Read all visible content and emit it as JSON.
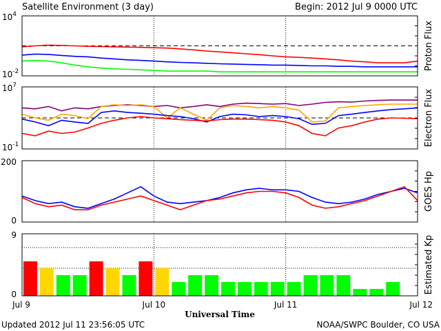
{
  "header": {
    "title": "Satellite Environment (3 day)",
    "begin": "Begin:  2012 Jul 9 0000 UTC"
  },
  "footer": {
    "updated": "Updated 2012 Jul 11 23:56:05 UTC",
    "credit": "NOAA/SWPC Boulder, CO USA"
  },
  "x_axis": {
    "label": "Universal Time",
    "ticks": [
      "Jul 9",
      "Jul 10",
      "Jul 11",
      "Jul 12"
    ],
    "range_days": [
      0,
      3
    ]
  },
  "colors": {
    "red": "#ff0000",
    "blue": "#0000ff",
    "green": "#00ff00",
    "orange": "#ffa500",
    "purple": "#800080",
    "kp_yellow": "#ffd700"
  },
  "chart_data": [
    {
      "type": "line",
      "ylabel": "Proton Flux",
      "yscale": "log",
      "ylim": [
        0.01,
        10000
      ],
      "yticks": [
        {
          "base": "10",
          "exp": "4"
        },
        {
          "base": "10",
          "exp": "-2"
        }
      ],
      "threshold": 10,
      "x": [
        0,
        0.1,
        0.2,
        0.3,
        0.4,
        0.5,
        0.6,
        0.7,
        0.8,
        0.9,
        1.0,
        1.1,
        1.2,
        1.3,
        1.4,
        1.5,
        1.6,
        1.7,
        1.8,
        1.9,
        2.0,
        2.1,
        2.2,
        2.3,
        2.4,
        2.5,
        2.6,
        2.7,
        2.8,
        2.9,
        3.0
      ],
      "series": [
        {
          "color": "#ff0000",
          "values": [
            8,
            10,
            12,
            11,
            10,
            9,
            8.5,
            8,
            7.5,
            7,
            6.5,
            6,
            5,
            4,
            3,
            2.5,
            2,
            1.6,
            1.3,
            1.0,
            0.8,
            0.7,
            0.6,
            0.5,
            0.4,
            0.3,
            0.25,
            0.2,
            0.2,
            0.2,
            0.3
          ]
        },
        {
          "color": "#0000ff",
          "values": [
            1.2,
            1.5,
            1.4,
            1.1,
            0.9,
            0.8,
            0.6,
            0.5,
            0.4,
            0.35,
            0.3,
            0.25,
            0.22,
            0.2,
            0.18,
            0.16,
            0.15,
            0.14,
            0.13,
            0.12,
            0.12,
            0.11,
            0.1,
            0.1,
            0.09,
            0.09,
            0.08,
            0.08,
            0.08,
            0.08,
            0.08
          ]
        },
        {
          "color": "#00ff00",
          "values": [
            0.3,
            0.35,
            0.3,
            0.2,
            0.12,
            0.08,
            0.06,
            0.05,
            0.045,
            0.04,
            0.035,
            0.03,
            0.03,
            0.03,
            0.03,
            0.025,
            0.025,
            0.025,
            0.025,
            0.025,
            0.025,
            0.025,
            0.025,
            0.025,
            0.025,
            0.025,
            0.025,
            0.025,
            0.025,
            0.025,
            0.025
          ]
        }
      ]
    },
    {
      "type": "line",
      "ylabel": "Electron Flux",
      "yscale": "log",
      "ylim": [
        0.1,
        10000000
      ],
      "yticks": [
        {
          "base": "10",
          "exp": "7"
        },
        {
          "base": "10",
          "exp": "-1"
        }
      ],
      "threshold": 1000,
      "x": [
        0,
        0.1,
        0.2,
        0.3,
        0.4,
        0.5,
        0.6,
        0.7,
        0.8,
        0.9,
        1.0,
        1.1,
        1.2,
        1.3,
        1.4,
        1.5,
        1.6,
        1.7,
        1.8,
        1.9,
        2.0,
        2.1,
        2.2,
        2.3,
        2.4,
        2.5,
        2.6,
        2.7,
        2.8,
        2.9,
        3.0
      ],
      "series": [
        {
          "color": "#800080",
          "values": [
            20000,
            15000,
            30000,
            8000,
            20000,
            15000,
            30000,
            40000,
            50000,
            40000,
            30000,
            40000,
            20000,
            30000,
            50000,
            30000,
            60000,
            80000,
            70000,
            60000,
            70000,
            40000,
            60000,
            100000,
            120000,
            110000,
            150000,
            180000,
            200000,
            200000,
            200000
          ]
        },
        {
          "color": "#ffa500",
          "values": [
            3000,
            1000,
            500,
            3000,
            2000,
            800,
            30000,
            50000,
            40000,
            50000,
            30000,
            1000,
            20000,
            3000,
            500,
            20000,
            40000,
            30000,
            20000,
            30000,
            20000,
            10000,
            300,
            400,
            20000,
            30000,
            40000,
            50000,
            60000,
            60000,
            60000
          ]
        },
        {
          "color": "#0000ff",
          "values": [
            700,
            300,
            100,
            500,
            300,
            200,
            5000,
            8000,
            5000,
            4000,
            3000,
            2000,
            1500,
            800,
            300,
            1500,
            3000,
            2500,
            1500,
            2000,
            1500,
            800,
            150,
            200,
            2000,
            3000,
            5000,
            8000,
            12000,
            15000,
            20000
          ]
        },
        {
          "color": "#ff0000",
          "values": [
            10,
            5,
            20,
            10,
            15,
            50,
            200,
            500,
            1000,
            1500,
            1000,
            800,
            600,
            500,
            400,
            600,
            700,
            700,
            600,
            500,
            300,
            100,
            10,
            5,
            50,
            100,
            300,
            700,
            1000,
            900,
            800
          ]
        }
      ]
    },
    {
      "type": "line",
      "ylabel": "GOES Hp",
      "yscale": "linear",
      "ylim": [
        0,
        200
      ],
      "yticks": [
        200,
        0
      ],
      "x": [
        0,
        0.1,
        0.2,
        0.3,
        0.4,
        0.5,
        0.6,
        0.7,
        0.8,
        0.9,
        1.0,
        1.1,
        1.2,
        1.3,
        1.4,
        1.5,
        1.6,
        1.7,
        1.8,
        1.9,
        2.0,
        2.1,
        2.2,
        2.3,
        2.4,
        2.5,
        2.6,
        2.7,
        2.8,
        2.9,
        3.0
      ],
      "series": [
        {
          "color": "#0000ff",
          "values": [
            85,
            70,
            60,
            65,
            50,
            45,
            60,
            75,
            95,
            115,
            85,
            65,
            60,
            65,
            70,
            80,
            95,
            105,
            110,
            105,
            105,
            100,
            80,
            65,
            60,
            65,
            75,
            90,
            100,
            110,
            95
          ]
        },
        {
          "color": "#ff0000",
          "values": [
            80,
            60,
            50,
            55,
            40,
            40,
            55,
            65,
            75,
            85,
            70,
            55,
            40,
            55,
            70,
            75,
            85,
            95,
            100,
            100,
            95,
            80,
            55,
            45,
            50,
            60,
            70,
            85,
            100,
            115,
            70
          ]
        }
      ]
    },
    {
      "type": "bar",
      "ylabel": "Estimated Kp",
      "ylim": [
        0,
        9
      ],
      "yticks": [
        9,
        0
      ],
      "gridlines": [
        4,
        7
      ],
      "bar_width_days": 0.125,
      "bars": [
        {
          "x": 0.0625,
          "value": 5,
          "color": "#ff0000"
        },
        {
          "x": 0.1875,
          "value": 4,
          "color": "#ffd700"
        },
        {
          "x": 0.3125,
          "value": 3,
          "color": "#00ff00"
        },
        {
          "x": 0.4375,
          "value": 3,
          "color": "#00ff00"
        },
        {
          "x": 0.5625,
          "value": 5,
          "color": "#ff0000"
        },
        {
          "x": 0.6875,
          "value": 4,
          "color": "#ffd700"
        },
        {
          "x": 0.8125,
          "value": 3,
          "color": "#00ff00"
        },
        {
          "x": 0.9375,
          "value": 5,
          "color": "#ff0000"
        },
        {
          "x": 1.0625,
          "value": 4,
          "color": "#ffd700"
        },
        {
          "x": 1.1875,
          "value": 2,
          "color": "#00ff00"
        },
        {
          "x": 1.3125,
          "value": 3,
          "color": "#00ff00"
        },
        {
          "x": 1.4375,
          "value": 3,
          "color": "#00ff00"
        },
        {
          "x": 1.5625,
          "value": 2,
          "color": "#00ff00"
        },
        {
          "x": 1.6875,
          "value": 2,
          "color": "#00ff00"
        },
        {
          "x": 1.8125,
          "value": 2,
          "color": "#00ff00"
        },
        {
          "x": 1.9375,
          "value": 2,
          "color": "#00ff00"
        },
        {
          "x": 2.0625,
          "value": 2,
          "color": "#00ff00"
        },
        {
          "x": 2.1875,
          "value": 3,
          "color": "#00ff00"
        },
        {
          "x": 2.3125,
          "value": 3,
          "color": "#00ff00"
        },
        {
          "x": 2.4375,
          "value": 3,
          "color": "#00ff00"
        },
        {
          "x": 2.5625,
          "value": 1,
          "color": "#00ff00"
        },
        {
          "x": 2.6875,
          "value": 1,
          "color": "#00ff00"
        },
        {
          "x": 2.8125,
          "value": 2,
          "color": "#00ff00"
        }
      ]
    }
  ]
}
